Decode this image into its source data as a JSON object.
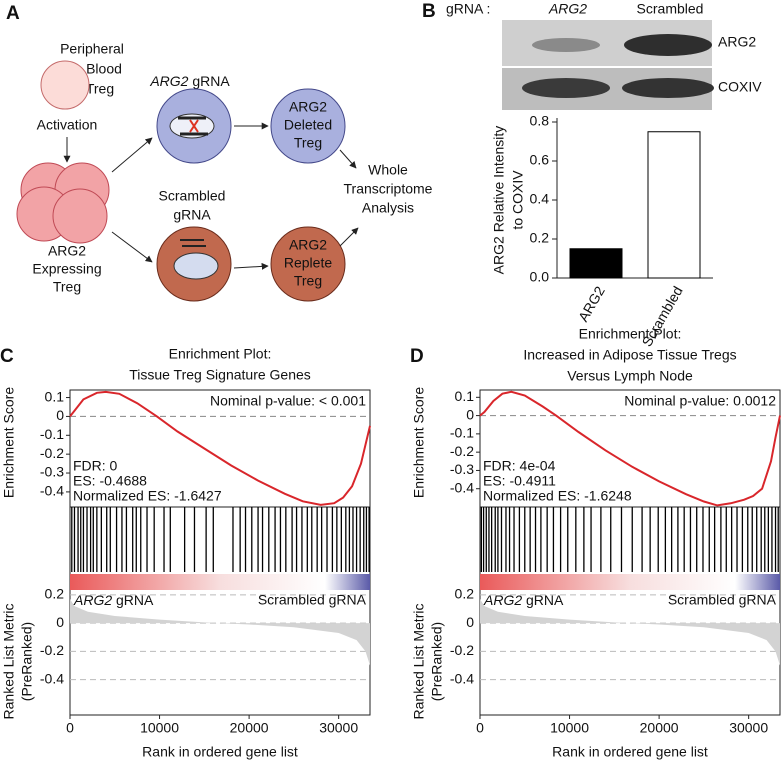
{
  "panel_a": {
    "letter": "A",
    "peripheral": [
      "Peripheral",
      "Blood",
      "Treg"
    ],
    "activation": "Activation",
    "expressing": [
      "ARG2",
      "Expressing",
      "Treg"
    ],
    "arg2_grna": {
      "gene": "ARG2",
      "text": "gRNA"
    },
    "scrambled_grna": [
      "Scrambled",
      "gRNA"
    ],
    "deleted": [
      "ARG2",
      "Deleted",
      "Treg"
    ],
    "replete": [
      "ARG2",
      "Replete",
      "Treg"
    ],
    "analysis": [
      "Whole",
      "Transcriptome",
      "Analysis"
    ]
  },
  "panel_b": {
    "letter": "B",
    "lane_header": "gRNA :",
    "lanes": [
      "ARG2",
      "Scrambled"
    ],
    "bands": [
      "ARG2",
      "COXIV"
    ]
  },
  "chart_data": [
    {
      "type": "bar",
      "categories": [
        "ARG2",
        "Scrambled"
      ],
      "values": [
        0.15,
        0.75
      ],
      "colors": [
        "#000000",
        "#ffffff"
      ],
      "ylabel": [
        "ARG2 Relative Intensity",
        "to COXIV"
      ],
      "ylim": [
        0,
        0.8
      ],
      "yticks": [
        {
          "value": 0,
          "label": "0.0"
        },
        0.2,
        0.4,
        0.6,
        0.8
      ]
    },
    {
      "type": "enrichment",
      "panel_label": "C",
      "title_lines": [
        "Enrichment Plot:",
        "Tissue Treg Signature Genes"
      ],
      "es": {
        "color": "#d9262b",
        "x": [
          0,
          500,
          1500,
          3000,
          4000,
          5500,
          7500,
          9700,
          12000,
          15000,
          18000,
          21000,
          24000,
          26000,
          28000,
          29500,
          30500,
          31500,
          32500,
          33000,
          33500
        ],
        "values": [
          0,
          0.03,
          0.09,
          0.125,
          0.13,
          0.12,
          0.07,
          0,
          -0.08,
          -0.17,
          -0.26,
          -0.34,
          -0.41,
          -0.45,
          -0.4688,
          -0.46,
          -0.43,
          -0.37,
          -0.25,
          -0.15,
          -0.05
        ]
      },
      "hits": [
        200,
        500,
        900,
        1200,
        1500,
        1900,
        2300,
        2600,
        3000,
        3500,
        4100,
        4500,
        5200,
        5800,
        6300,
        7000,
        7400,
        7900,
        8600,
        9400,
        10500,
        11200,
        12800,
        13900,
        15200,
        16000,
        18200,
        19000,
        19600,
        20300,
        21000,
        21500,
        22200,
        22900,
        23500,
        24100,
        24800,
        25300,
        25900,
        26500,
        27000,
        27600,
        28100,
        28700,
        29300,
        29800,
        30300,
        30800,
        31200,
        31600,
        32000,
        32400,
        32800,
        33100,
        33400
      ],
      "metric": {
        "color": "#d3d3d3",
        "x": [
          0,
          500,
          2000,
          5000,
          10000,
          15000,
          16500,
          20000,
          25000,
          30000,
          32000,
          33000,
          33500
        ],
        "values": [
          0.17,
          0.12,
          0.08,
          0.05,
          0.025,
          0.005,
          0,
          -0.01,
          -0.03,
          -0.07,
          -0.12,
          -0.2,
          -0.3
        ]
      },
      "annotations": {
        "p_value": "Nominal p-value: < 0.001",
        "stats": [
          "FDR: 0",
          "ES: -0.4688",
          "Normalized ES: -1.6427"
        ]
      },
      "left_label": {
        "gene": "ARG2",
        "text": "gRNA"
      },
      "right_label": "Scrambled gRNA",
      "ylabel": "Enrichment Score",
      "y2label": [
        "Ranked List Metric",
        "(PreRanked)"
      ],
      "xlabel": "Rank in ordered gene list",
      "xlim": [
        0,
        33500
      ],
      "xticks": [
        0,
        10000,
        20000,
        30000
      ],
      "ylim": [
        -0.48,
        0.14
      ],
      "yticks": [
        0.1,
        0,
        -0.1,
        -0.2,
        -0.3,
        -0.4
      ],
      "y2lim": [
        -0.65,
        0.22
      ],
      "y2ticks": [
        0.2,
        0,
        -0.2,
        -0.4
      ]
    },
    {
      "type": "enrichment",
      "panel_label": "D",
      "title_lines": [
        "Enrichment Plot:",
        "Increased in Adipose Tissue Tregs",
        "Versus Lymph Node"
      ],
      "es": {
        "color": "#d9262b",
        "x": [
          0,
          500,
          1500,
          2500,
          3500,
          5000,
          7000,
          8500,
          11000,
          14000,
          17000,
          20000,
          23000,
          25000,
          26500,
          28000,
          29500,
          30500,
          31500,
          32500,
          33000,
          33500
        ],
        "values": [
          0,
          0.02,
          0.08,
          0.12,
          0.13,
          0.11,
          0.05,
          0,
          -0.09,
          -0.19,
          -0.28,
          -0.36,
          -0.43,
          -0.47,
          -0.4911,
          -0.48,
          -0.46,
          -0.44,
          -0.4,
          -0.25,
          -0.12,
          0
        ]
      },
      "hits": [
        150,
        400,
        700,
        1000,
        1300,
        1700,
        2000,
        2400,
        2900,
        3300,
        3800,
        4400,
        5000,
        5600,
        6200,
        6800,
        7500,
        8200,
        9000,
        9800,
        10700,
        11600,
        12400,
        13500,
        14600,
        15800,
        17000,
        18100,
        19000,
        19900,
        20700,
        21400,
        22100,
        22800,
        23500,
        24200,
        24900,
        25600,
        26200,
        26900,
        27500,
        28100,
        28700,
        29300,
        29900,
        30400,
        30900,
        31400,
        31800,
        32200,
        32600,
        33000,
        33300
      ],
      "metric": {
        "color": "#d3d3d3",
        "x": [
          0,
          500,
          2000,
          5000,
          10000,
          15000,
          16500,
          20000,
          25000,
          30000,
          32000,
          33000,
          33500
        ],
        "values": [
          0.17,
          0.12,
          0.08,
          0.05,
          0.025,
          0.005,
          0,
          -0.01,
          -0.03,
          -0.07,
          -0.12,
          -0.2,
          -0.3
        ]
      },
      "annotations": {
        "p_value": "Nominal p-value: 0.0012",
        "stats": [
          "FDR: 4e-04",
          "ES: -0.4911",
          "Normalized ES: -1.6248"
        ]
      },
      "left_label": {
        "gene": "ARG2",
        "text": "gRNA"
      },
      "right_label": "Scrambled gRNA",
      "ylabel": "Enrichment Score",
      "y2label": [
        "Ranked List Metric",
        "(PreRanked)"
      ],
      "xlabel": "Rank in ordered gene list",
      "xlim": [
        0,
        33500
      ],
      "xticks": [
        0,
        10000,
        20000,
        30000
      ],
      "ylim": [
        -0.5,
        0.14
      ],
      "yticks": [
        0.1,
        0,
        -0.1,
        -0.2,
        -0.3,
        -0.4
      ],
      "y2lim": [
        -0.65,
        0.22
      ],
      "y2ticks": [
        0.2,
        0,
        -0.2,
        -0.4
      ]
    }
  ]
}
